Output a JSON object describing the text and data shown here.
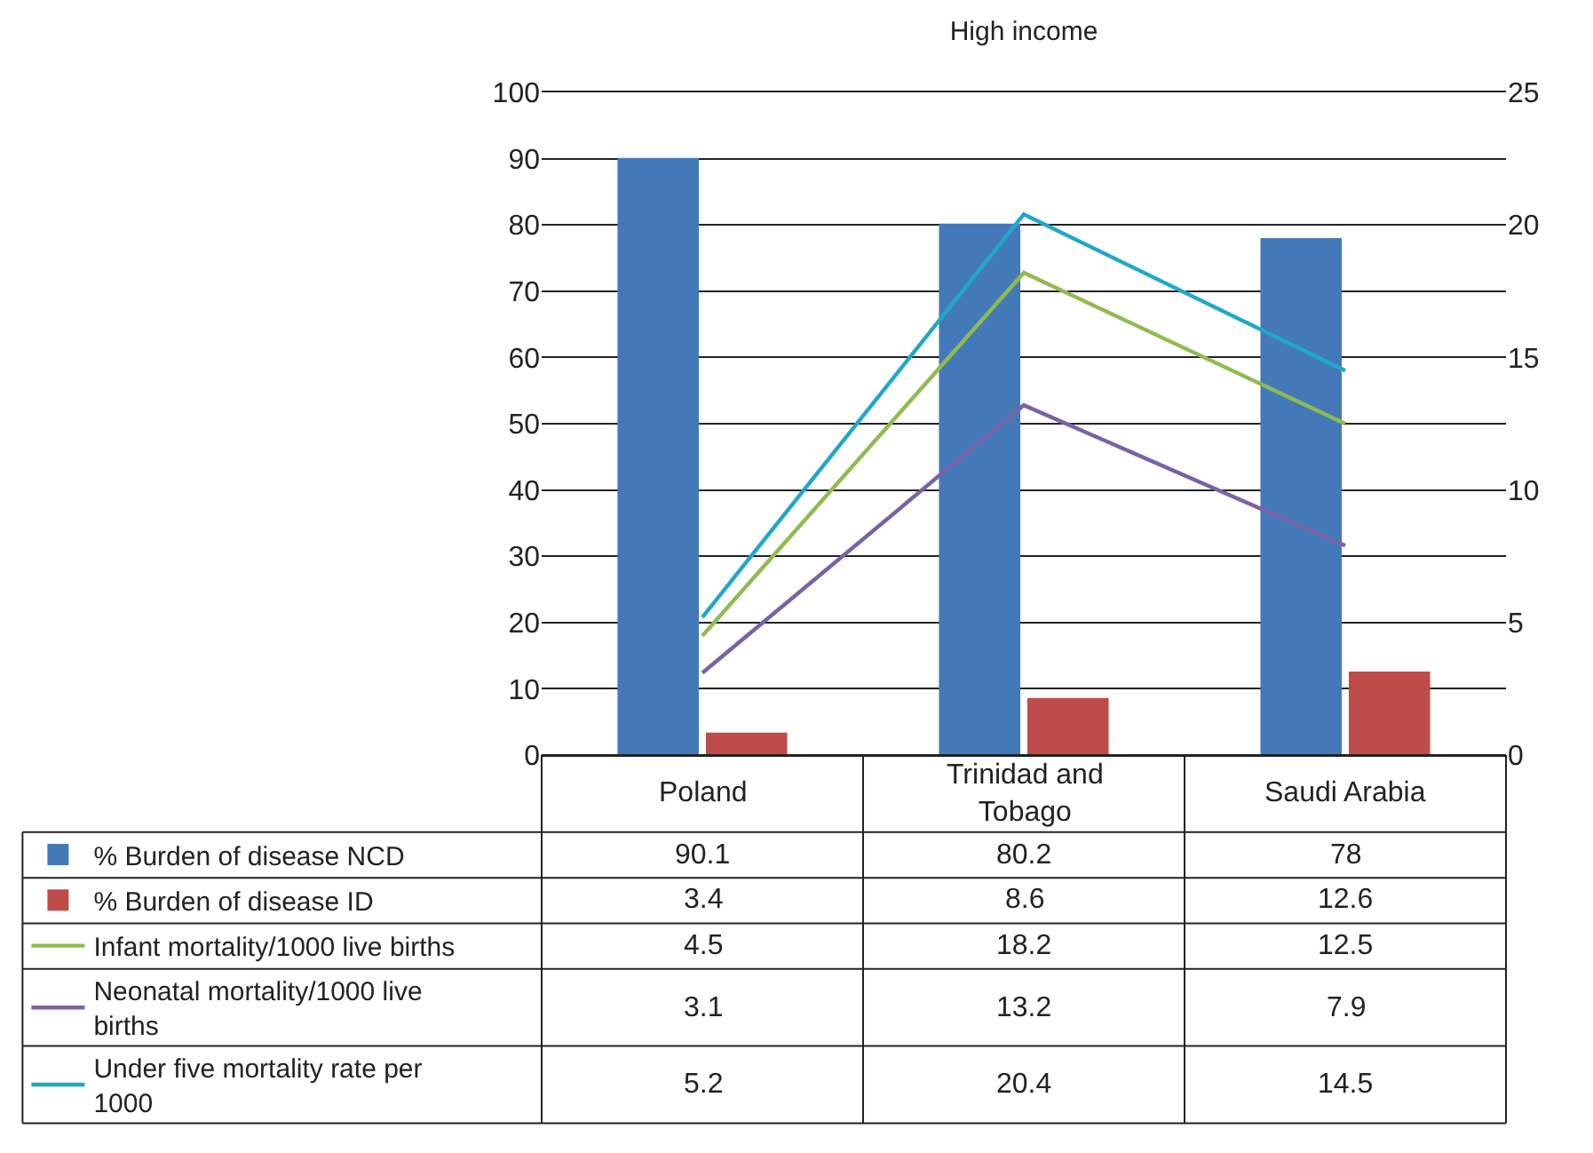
{
  "chart_data": {
    "type": "bar",
    "title": "High income",
    "categories": [
      "Poland",
      "Trinidad and Tobago",
      "Saudi Arabia"
    ],
    "series": [
      {
        "name": "% Burden of disease NCD",
        "color": "#4479b9",
        "values": [
          90.1,
          80.2,
          78
        ]
      },
      {
        "name": "% Burden of disease ID",
        "color": "#be4d4a",
        "values": [
          3.4,
          8.6,
          12.6
        ]
      },
      {
        "name": "Infant mortality/1000 live births",
        "type": "line",
        "axis": "y2",
        "color": "#8fbb50",
        "values": [
          4.5,
          18.2,
          12.5
        ]
      },
      {
        "name": "Neonatal mortality/1000 live births",
        "type": "line",
        "axis": "y2",
        "color": "#7a62a6",
        "values": [
          3.1,
          13.2,
          7.9
        ]
      },
      {
        "name": "Under five mortality rate per 1000",
        "type": "line",
        "axis": "y2",
        "color": "#1fa8c8",
        "values": [
          5.2,
          20.4,
          14.5
        ]
      }
    ],
    "ylim": [
      0,
      100
    ],
    "yticks": [
      0,
      10,
      20,
      30,
      40,
      50,
      60,
      70,
      80,
      90,
      100
    ],
    "y2lim": [
      0,
      25
    ],
    "y2ticks": [
      0,
      5,
      10,
      15,
      20,
      25
    ],
    "grid": "y",
    "legend": "bottom left",
    "data_labels": true
  }
}
